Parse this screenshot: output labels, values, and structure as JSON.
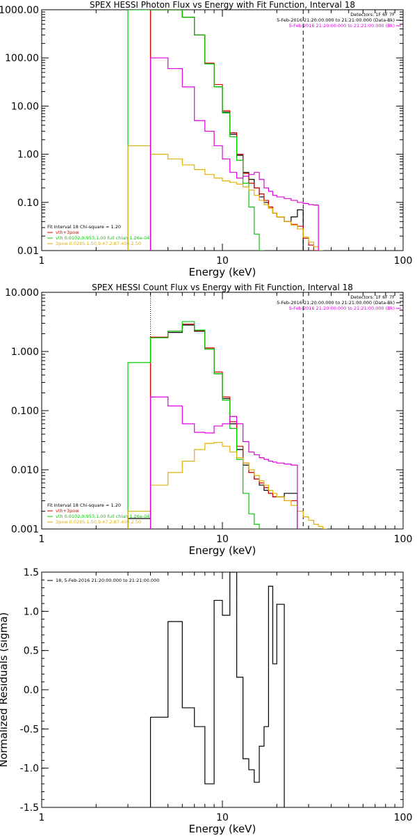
{
  "chart_data": [
    {
      "type": "line",
      "title": "SPEX HESSI Photon Flux vs Energy with Fit Function, Interval 18",
      "xlabel": "Energy (keV)",
      "ylabel": "",
      "x_scale": "log",
      "y_scale": "log",
      "xlim": [
        1,
        100
      ],
      "ylim": [
        0.01,
        1000
      ],
      "x_ticks": [
        {
          "v": 1,
          "label": "1"
        },
        {
          "v": 10,
          "label": "10"
        },
        {
          "v": 100,
          "label": "100"
        }
      ],
      "y_ticks": [
        {
          "v": 0.01,
          "label": "0.01"
        },
        {
          "v": 0.1,
          "label": "0.10"
        },
        {
          "v": 1,
          "label": "1.00"
        },
        {
          "v": 10,
          "label": "10.00"
        },
        {
          "v": 100,
          "label": "100.00"
        },
        {
          "v": 1000,
          "label": "1000.00"
        }
      ],
      "header_lines": [
        {
          "text": "Detectors: 1F 6F 7F",
          "color": "#000000"
        },
        {
          "text": "5-Feb-2016 21:20:00.000 to 21:21:00.000 (Data-Bk)",
          "color": "#000000"
        },
        {
          "text": "5-Feb-2016 21:20:00.000 to 21:21:00.000 (Bk)",
          "color": "#dd00dd"
        }
      ],
      "legend_lines": [
        {
          "text": "Fit Interval 18   Chi-square = 1.20",
          "color": "#000000"
        },
        {
          "text": "vth+3pow",
          "color": "#dd0000"
        },
        {
          "text": "vth 0.0102,0.953,1.00  full chian 1.26e-04",
          "color": "#00cc00"
        },
        {
          "text": "3pow 0.0285,1.50,9.47,2.87,400,2.50",
          "color": "#e0b000"
        }
      ],
      "vlines": [
        {
          "x": 4,
          "style": "dotted"
        },
        {
          "x": 28,
          "style": "dashed"
        }
      ],
      "edges": [
        3,
        4,
        5,
        6,
        7,
        8,
        9,
        10,
        11,
        12,
        13,
        14,
        15,
        16,
        17,
        18,
        19,
        20,
        22,
        24,
        26,
        28,
        30,
        32,
        34,
        36,
        38,
        40
      ],
      "series": [
        {
          "name": "Data-Bk",
          "color": "#000000",
          "start": 4,
          "values": [
            1000,
            1000,
            700,
            300,
            75,
            25,
            7.5,
            2.6,
            0.95,
            0.42,
            0.3,
            0.2,
            0.13,
            0.1,
            0.08,
            0.06,
            0.05,
            0.04,
            0.05,
            0.07
          ]
        },
        {
          "name": "vth+3pow",
          "color": "#dd0000",
          "start": 4,
          "values": [
            1000,
            1000,
            700,
            300,
            78,
            28,
            8,
            2.8,
            1.0,
            0.4,
            0.25,
            0.2,
            0.15,
            0.11,
            0.08,
            0.06,
            0.05,
            0.04,
            0.035,
            0.032,
            0.018,
            0.013,
            0.01
          ]
        },
        {
          "name": "vth",
          "color": "#00cc00",
          "start": 3,
          "values": [
            1000,
            1000,
            1000,
            700,
            300,
            75,
            25,
            7.2,
            2.3,
            0.75,
            0.25,
            0.08,
            0.022,
            0.01
          ]
        },
        {
          "name": "3pow",
          "color": "#e0b000",
          "start": 3,
          "values": [
            1.5,
            1.0,
            0.8,
            0.6,
            0.48,
            0.38,
            0.32,
            0.28,
            0.26,
            0.24,
            0.21,
            0.18,
            0.14,
            0.11,
            0.09,
            0.075,
            0.06,
            0.05,
            0.04,
            0.034,
            0.028,
            0.019,
            0.015,
            0.012,
            0.01
          ]
        },
        {
          "name": "Bk",
          "color": "#dd00dd",
          "start": 4,
          "values": [
            100,
            60,
            25,
            5,
            3,
            1.5,
            0.8,
            0.42,
            0.32,
            0.35,
            0.38,
            0.42,
            0.3,
            0.2,
            0.17,
            0.14,
            0.13,
            0.12,
            0.11,
            0.1,
            0.095,
            0.09,
            0.088
          ]
        }
      ]
    },
    {
      "type": "line",
      "title": "SPEX HESSI Count Flux vs Energy with Fit Function, Interval 18",
      "xlabel": "Energy (keV)",
      "ylabel": "",
      "x_scale": "log",
      "y_scale": "log",
      "xlim": [
        1,
        100
      ],
      "ylim": [
        0.001,
        10
      ],
      "x_ticks": [
        {
          "v": 1,
          "label": "1"
        },
        {
          "v": 10,
          "label": "10"
        },
        {
          "v": 100,
          "label": "100"
        }
      ],
      "y_ticks": [
        {
          "v": 0.001,
          "label": "0.001"
        },
        {
          "v": 0.01,
          "label": "0.010"
        },
        {
          "v": 0.1,
          "label": "0.100"
        },
        {
          "v": 1,
          "label": "1.000"
        },
        {
          "v": 10,
          "label": "10.000"
        }
      ],
      "header_lines": [
        {
          "text": "Detectors: 1F 6F 7F",
          "color": "#000000"
        },
        {
          "text": "5-Feb-2016 21:20:00.000 to 21:21:00.000 (Data-Bk)",
          "color": "#000000"
        },
        {
          "text": "5-Feb-2016 21:20:00.000 to 21:21:00.000 (Bk)",
          "color": "#dd00dd"
        }
      ],
      "legend_lines": [
        {
          "text": "Fit Interval 18   Chi-square = 1.20",
          "color": "#000000"
        },
        {
          "text": "vth+3pow",
          "color": "#dd0000"
        },
        {
          "text": "vth 0.0102,0.953,1.00  full chian 1.26e-04",
          "color": "#00cc00"
        },
        {
          "text": "3pow 0.0285,1.50,9.47,2.87,400,2.50",
          "color": "#e0b000"
        }
      ],
      "vlines": [
        {
          "x": 4,
          "style": "dotted"
        },
        {
          "x": 28,
          "style": "dashed"
        }
      ],
      "edges": [
        3,
        4,
        5,
        6,
        7,
        8,
        9,
        10,
        11,
        12,
        13,
        14,
        15,
        16,
        17,
        18,
        19,
        20,
        22,
        24,
        26,
        28,
        30,
        32,
        34,
        36,
        38,
        40
      ],
      "series": [
        {
          "name": "Data-Bk",
          "color": "#000000",
          "start": 3,
          "values": [
            0.0015,
            1.7,
            2.1,
            2.8,
            2.2,
            1.1,
            0.42,
            0.16,
            0.06,
            0.022,
            0.012,
            0.009,
            0.007,
            0.0055,
            0.0045,
            0.004,
            0.0035,
            0.0035,
            0.004,
            0.004
          ]
        },
        {
          "name": "vth+3pow",
          "color": "#dd0000",
          "start": 4,
          "values": [
            1.75,
            2.2,
            2.9,
            2.25,
            1.15,
            0.45,
            0.17,
            0.065,
            0.025,
            0.013,
            0.009,
            0.007,
            0.006,
            0.005,
            0.004,
            0.0035,
            0.0035,
            0.003,
            0.003
          ]
        },
        {
          "name": "vth",
          "color": "#00cc00",
          "start": 3,
          "values": [
            0.65,
            1.7,
            2.2,
            3.2,
            2.3,
            1.1,
            0.42,
            0.15,
            0.05,
            0.015,
            0.004,
            0.0018,
            0.0012
          ]
        },
        {
          "name": "3pow",
          "color": "#e0b000",
          "start": 3,
          "values": [
            0.002,
            0.0055,
            0.009,
            0.014,
            0.022,
            0.028,
            0.029,
            0.025,
            0.02,
            0.016,
            0.013,
            0.01,
            0.008,
            0.0065,
            0.0055,
            0.0045,
            0.004,
            0.0035,
            0.003,
            0.0025,
            0.002,
            0.0016,
            0.0014,
            0.0012,
            0.0011,
            0.001
          ]
        },
        {
          "name": "Bk",
          "color": "#dd00dd",
          "start": 4,
          "values": [
            0.17,
            0.12,
            0.06,
            0.043,
            0.042,
            0.055,
            0.06,
            0.08,
            0.06,
            0.03,
            0.02,
            0.018,
            0.016,
            0.015,
            0.014,
            0.0135,
            0.013,
            0.0125,
            0.012
          ]
        }
      ]
    },
    {
      "type": "line",
      "title": "",
      "xlabel": "Energy (keV)",
      "ylabel": "Normalized Residuals (sigma)",
      "x_scale": "log",
      "y_scale": "linear",
      "xlim": [
        1,
        100
      ],
      "ylim": [
        -1.5,
        1.5
      ],
      "x_ticks": [
        {
          "v": 1,
          "label": "1"
        },
        {
          "v": 10,
          "label": "10"
        },
        {
          "v": 100,
          "label": "100"
        }
      ],
      "y_ticks": [
        {
          "v": -1.5,
          "label": "-1.5"
        },
        {
          "v": -1.0,
          "label": "-1.0"
        },
        {
          "v": -0.5,
          "label": "-0.5"
        },
        {
          "v": 0.0,
          "label": "0.0"
        },
        {
          "v": 0.5,
          "label": "0.5"
        },
        {
          "v": 1.0,
          "label": "1.0"
        },
        {
          "v": 1.5,
          "label": "1.5"
        }
      ],
      "header_lines": [],
      "legend_lines": [
        {
          "text": "18,  5-Feb-2016 21:20:00.000 to 21:21:00.000",
          "color": "#000000"
        }
      ],
      "vlines": [],
      "edges": [
        4,
        5,
        6,
        7,
        8,
        9,
        10,
        11,
        12,
        13,
        14,
        15,
        16,
        17,
        18,
        19,
        20,
        22,
        24,
        26,
        28
      ],
      "series": [
        {
          "name": "18",
          "color": "#000000",
          "start": 4,
          "values": [
            -0.35,
            0.87,
            -0.23,
            -0.47,
            -1.2,
            1.14,
            0.95,
            1.5,
            0.16,
            -0.88,
            -1.02,
            -1.18,
            -0.72,
            -0.47,
            1.32,
            0.33,
            1.09
          ]
        }
      ]
    }
  ]
}
